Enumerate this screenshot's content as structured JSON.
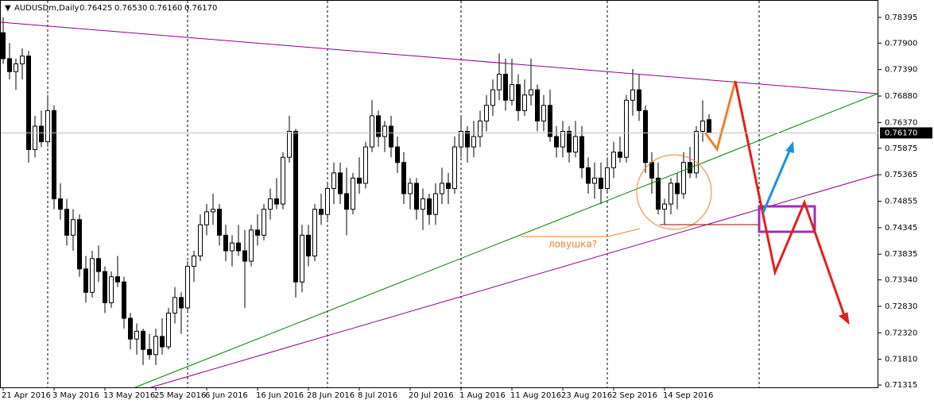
{
  "chart_data": {
    "type": "candlestick",
    "header": "AUDUSDm,Daily",
    "header_prices": [
      "0.76425",
      "0.76530",
      "0.76160",
      "0.76170"
    ],
    "annotation": "ловушка?",
    "current_price": {
      "value": 0.7617,
      "label": "0.76170"
    },
    "ylim": [
      0.7127,
      0.7873
    ],
    "yticks": [
      0.78395,
      {
        "value": 0.779,
        "label": "0.77900"
      },
      {
        "value": 0.7739,
        "label": "0.77390"
      },
      {
        "value": 0.7688,
        "label": "0.76880"
      },
      {
        "value": 0.7637,
        "label": "0.76370"
      },
      0.75875,
      0.75365,
      0.74855,
      0.74345,
      0.73835,
      {
        "value": 0.7334,
        "label": "0.73340"
      },
      {
        "value": 0.7283,
        "label": "0.72830"
      },
      {
        "value": 0.7232,
        "label": "0.72320"
      },
      {
        "value": 0.7181,
        "label": "0.71810"
      },
      0.71315
    ],
    "bull_color": "#ffffff",
    "bear_color": "#000000",
    "categories": [
      "21 Apr 2016",
      null,
      null,
      null,
      null,
      null,
      null,
      null,
      "3 May 2016",
      null,
      null,
      null,
      null,
      null,
      null,
      null,
      "13 May 2016",
      null,
      null,
      null,
      null,
      null,
      null,
      null,
      "25 May 2016",
      null,
      null,
      null,
      null,
      null,
      null,
      null,
      "6 Jun 2016",
      null,
      null,
      null,
      null,
      null,
      null,
      null,
      "16 Jun 2016",
      null,
      null,
      null,
      null,
      null,
      null,
      null,
      "28 Jun 2016",
      null,
      null,
      null,
      null,
      null,
      null,
      null,
      "8 Jul 2016",
      null,
      null,
      null,
      null,
      null,
      null,
      null,
      "20 Jul 2016",
      null,
      null,
      null,
      null,
      null,
      null,
      null,
      "1 Aug 2016",
      null,
      null,
      null,
      null,
      null,
      null,
      null,
      "11 Aug 2016",
      null,
      null,
      null,
      null,
      null,
      null,
      null,
      "23 Aug 2016",
      null,
      null,
      null,
      null,
      null,
      null,
      null,
      "2 Sep 2016",
      null,
      null,
      null,
      null,
      null,
      null,
      null,
      "14 Sep 2016",
      null,
      null,
      null,
      null,
      null,
      null,
      null
    ],
    "ohlc": [
      [
        0.781,
        0.784,
        0.775,
        0.776
      ],
      [
        0.776,
        0.779,
        0.772,
        0.7735
      ],
      [
        0.7735,
        0.776,
        0.77,
        0.775
      ],
      [
        0.775,
        0.778,
        0.772,
        0.7765
      ],
      [
        0.7765,
        0.7775,
        0.756,
        0.7585
      ],
      [
        0.7585,
        0.765,
        0.757,
        0.763
      ],
      [
        0.763,
        0.766,
        0.759,
        0.76
      ],
      [
        0.76,
        0.769,
        0.759,
        0.766
      ],
      [
        0.766,
        0.767,
        0.747,
        0.749
      ],
      [
        0.749,
        0.752,
        0.745,
        0.747
      ],
      [
        0.747,
        0.749,
        0.74,
        0.742
      ],
      [
        0.742,
        0.747,
        0.739,
        0.745
      ],
      [
        0.745,
        0.746,
        0.734,
        0.7355
      ],
      [
        0.7355,
        0.738,
        0.729,
        0.731
      ],
      [
        0.731,
        0.739,
        0.73,
        0.7375
      ],
      [
        0.7375,
        0.74,
        0.733,
        0.735
      ],
      [
        0.735,
        0.736,
        0.727,
        0.729
      ],
      [
        0.729,
        0.735,
        0.728,
        0.734
      ],
      [
        0.734,
        0.738,
        0.732,
        0.733
      ],
      [
        0.733,
        0.734,
        0.724,
        0.726
      ],
      [
        0.726,
        0.727,
        0.72,
        0.722
      ],
      [
        0.722,
        0.725,
        0.719,
        0.7235
      ],
      [
        0.7235,
        0.724,
        0.717,
        0.72
      ],
      [
        0.72,
        0.723,
        0.718,
        0.719
      ],
      [
        0.719,
        0.724,
        0.717,
        0.7225
      ],
      [
        0.7225,
        0.726,
        0.719,
        0.7205
      ],
      [
        0.7205,
        0.728,
        0.72,
        0.727
      ],
      [
        0.727,
        0.732,
        0.725,
        0.73
      ],
      [
        0.73,
        0.731,
        0.723,
        0.728
      ],
      [
        0.728,
        0.737,
        0.727,
        0.736
      ],
      [
        0.736,
        0.739,
        0.733,
        0.738
      ],
      [
        0.738,
        0.746,
        0.737,
        0.744
      ],
      [
        0.744,
        0.748,
        0.742,
        0.7465
      ],
      [
        0.7465,
        0.75,
        0.744,
        0.747
      ],
      [
        0.747,
        0.748,
        0.74,
        0.742
      ],
      [
        0.742,
        0.744,
        0.737,
        0.739
      ],
      [
        0.739,
        0.742,
        0.736,
        0.7405
      ],
      [
        0.7405,
        0.744,
        0.738,
        0.739
      ],
      [
        0.739,
        0.743,
        0.728,
        0.737
      ],
      [
        0.737,
        0.744,
        0.736,
        0.743
      ],
      [
        0.743,
        0.746,
        0.74,
        0.742
      ],
      [
        0.742,
        0.748,
        0.741,
        0.747
      ],
      [
        0.747,
        0.751,
        0.745,
        0.749
      ],
      [
        0.749,
        0.753,
        0.747,
        0.748
      ],
      [
        0.748,
        0.758,
        0.747,
        0.757
      ],
      [
        0.757,
        0.765,
        0.756,
        0.762
      ],
      [
        0.762,
        0.7625,
        0.73,
        0.733
      ],
      [
        0.733,
        0.744,
        0.731,
        0.742
      ],
      [
        0.742,
        0.744,
        0.736,
        0.738
      ],
      [
        0.738,
        0.748,
        0.737,
        0.747
      ],
      [
        0.747,
        0.75,
        0.744,
        0.746
      ],
      [
        0.746,
        0.752,
        0.745,
        0.751
      ],
      [
        0.751,
        0.756,
        0.748,
        0.754
      ],
      [
        0.754,
        0.756,
        0.748,
        0.75
      ],
      [
        0.75,
        0.755,
        0.742,
        0.747
      ],
      [
        0.747,
        0.754,
        0.746,
        0.753
      ],
      [
        0.753,
        0.757,
        0.75,
        0.752
      ],
      [
        0.752,
        0.76,
        0.751,
        0.759
      ],
      [
        0.759,
        0.768,
        0.758,
        0.765
      ],
      [
        0.765,
        0.766,
        0.759,
        0.761
      ],
      [
        0.761,
        0.764,
        0.758,
        0.763
      ],
      [
        0.763,
        0.765,
        0.757,
        0.759
      ],
      [
        0.759,
        0.761,
        0.754,
        0.756
      ],
      [
        0.756,
        0.758,
        0.748,
        0.75
      ],
      [
        0.75,
        0.753,
        0.747,
        0.752
      ],
      [
        0.752,
        0.753,
        0.745,
        0.747
      ],
      [
        0.747,
        0.751,
        0.743,
        0.749
      ],
      [
        0.749,
        0.75,
        0.744,
        0.746
      ],
      [
        0.746,
        0.752,
        0.744,
        0.75
      ],
      [
        0.75,
        0.755,
        0.748,
        0.752
      ],
      [
        0.752,
        0.754,
        0.748,
        0.751
      ],
      [
        0.751,
        0.761,
        0.75,
        0.759
      ],
      [
        0.759,
        0.765,
        0.757,
        0.762
      ],
      [
        0.762,
        0.763,
        0.756,
        0.759
      ],
      [
        0.759,
        0.764,
        0.757,
        0.761
      ],
      [
        0.761,
        0.766,
        0.759,
        0.764
      ],
      [
        0.764,
        0.769,
        0.762,
        0.767
      ],
      [
        0.767,
        0.772,
        0.765,
        0.77
      ],
      [
        0.77,
        0.777,
        0.768,
        0.773
      ],
      [
        0.773,
        0.776,
        0.766,
        0.768
      ],
      [
        0.768,
        0.776,
        0.767,
        0.771
      ],
      [
        0.771,
        0.773,
        0.764,
        0.766
      ],
      [
        0.766,
        0.772,
        0.765,
        0.769
      ],
      [
        0.769,
        0.776,
        0.767,
        0.77
      ],
      [
        0.77,
        0.771,
        0.762,
        0.764
      ],
      [
        0.764,
        0.769,
        0.762,
        0.767
      ],
      [
        0.767,
        0.77,
        0.76,
        0.761
      ],
      [
        0.761,
        0.763,
        0.757,
        0.759
      ],
      [
        0.759,
        0.764,
        0.757,
        0.762
      ],
      [
        0.762,
        0.763,
        0.756,
        0.758
      ],
      [
        0.758,
        0.764,
        0.757,
        0.761
      ],
      [
        0.761,
        0.763,
        0.753,
        0.755
      ],
      [
        0.755,
        0.757,
        0.75,
        0.752
      ],
      [
        0.752,
        0.756,
        0.749,
        0.753
      ],
      [
        0.753,
        0.756,
        0.748,
        0.751
      ],
      [
        0.751,
        0.757,
        0.75,
        0.755
      ],
      [
        0.755,
        0.76,
        0.753,
        0.758
      ],
      [
        0.758,
        0.761,
        0.756,
        0.757
      ],
      [
        0.757,
        0.769,
        0.756,
        0.768
      ],
      [
        0.768,
        0.774,
        0.765,
        0.77
      ],
      [
        0.77,
        0.773,
        0.764,
        0.766
      ],
      [
        0.766,
        0.767,
        0.754,
        0.756
      ],
      [
        0.756,
        0.758,
        0.75,
        0.753
      ],
      [
        0.753,
        0.756,
        0.746,
        0.747
      ],
      [
        0.747,
        0.749,
        0.744,
        0.748
      ],
      [
        0.748,
        0.753,
        0.746,
        0.752
      ],
      [
        0.752,
        0.754,
        0.747,
        0.75
      ],
      [
        0.75,
        0.758,
        0.749,
        0.756
      ],
      [
        0.756,
        0.759,
        0.753,
        0.754
      ],
      [
        0.754,
        0.763,
        0.753,
        0.762
      ],
      [
        0.762,
        0.768,
        0.76,
        0.764
      ],
      [
        0.76425,
        0.7653,
        0.7616,
        0.7617
      ]
    ]
  }
}
